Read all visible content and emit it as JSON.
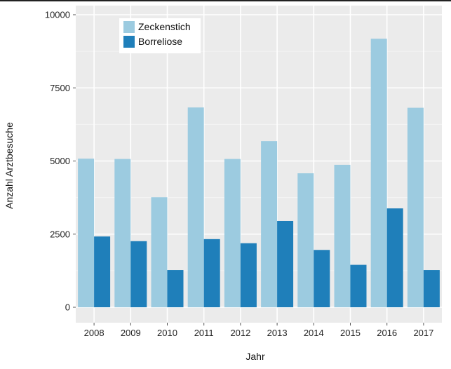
{
  "chart_data": {
    "type": "bar",
    "title": "",
    "xlabel": "Jahr",
    "ylabel": "Anzahl Arztbesuche",
    "categories": [
      "2008",
      "2009",
      "2010",
      "2011",
      "2012",
      "2013",
      "2014",
      "2015",
      "2016",
      "2017"
    ],
    "series": [
      {
        "name": "Zeckenstich",
        "color": "#9ccbe0",
        "values": [
          5080,
          5070,
          3760,
          6830,
          5070,
          5680,
          4580,
          4870,
          9180,
          6820
        ]
      },
      {
        "name": "Borreliose",
        "color": "#1f7fba",
        "values": [
          2420,
          2260,
          1270,
          2330,
          2190,
          2950,
          1960,
          1450,
          3380,
          1270
        ]
      }
    ],
    "ylim": [
      0,
      10000
    ],
    "yticks": [
      0,
      2500,
      5000,
      7500,
      10000
    ],
    "grid": true,
    "legend_position": "top-left"
  }
}
